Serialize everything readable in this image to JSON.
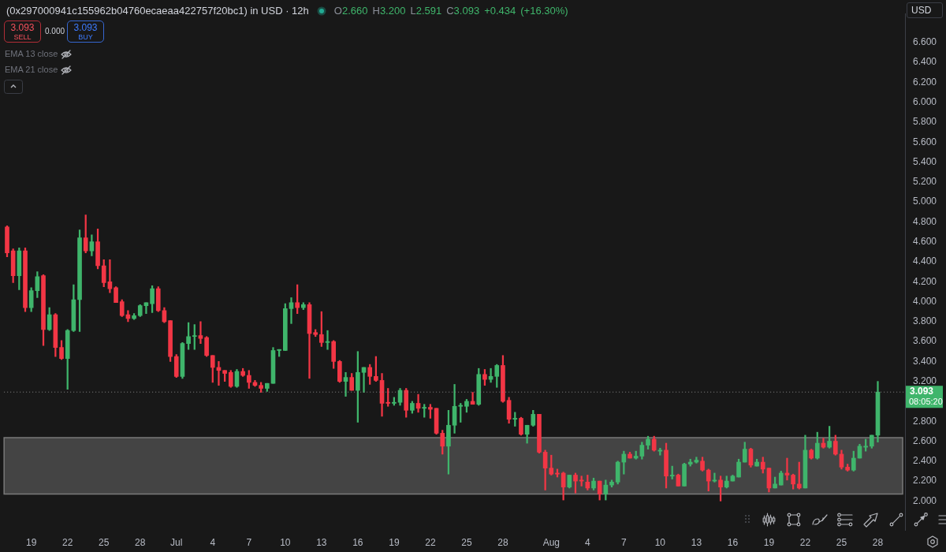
{
  "chart_data": {
    "type": "candlestick",
    "title": "(0x297000941c155962b04760ecaeaa422757f20bc1) in USD · 12h",
    "ylabel": "USD",
    "categories": [
      null,
      null,
      null,
      null,
      "19",
      null,
      null,
      null,
      null,
      null,
      "22",
      null,
      null,
      null,
      null,
      null,
      "25",
      null,
      null,
      null,
      null,
      null,
      "28",
      null,
      null,
      null,
      null,
      null,
      "Jul",
      null,
      null,
      null,
      null,
      null,
      "4",
      null,
      null,
      null,
      null,
      null,
      "7",
      null,
      null,
      null,
      null,
      null,
      "10",
      null,
      null,
      null,
      null,
      null,
      "13",
      null,
      null,
      null,
      null,
      null,
      "16",
      null,
      null,
      null,
      null,
      null,
      "19",
      null,
      null,
      null,
      null,
      null,
      "22",
      null,
      null,
      null,
      null,
      null,
      "25",
      null,
      null,
      null,
      null,
      null,
      "28",
      null,
      null,
      null,
      null,
      null,
      null,
      null,
      "Aug",
      null,
      null,
      null,
      null,
      null,
      "4",
      null,
      null,
      null,
      null,
      null,
      "7",
      null,
      null,
      null,
      null,
      null,
      "10",
      null,
      null,
      null,
      null,
      null,
      "13",
      null,
      null,
      null,
      null,
      null,
      "16",
      null,
      null,
      null,
      null,
      null,
      "19",
      null,
      null,
      null,
      null,
      null,
      "22",
      null,
      null,
      null,
      null,
      null,
      "25",
      null,
      null,
      null,
      null,
      null,
      "28",
      null,
      null,
      null,
      null
    ],
    "ohlc": [
      [
        4.75,
        4.76,
        4.45,
        4.49
      ],
      [
        4.51,
        4.53,
        4.19,
        4.26
      ],
      [
        4.26,
        4.54,
        4.12,
        4.51
      ],
      [
        4.51,
        4.54,
        3.9,
        3.94
      ],
      [
        3.94,
        4.14,
        3.9,
        4.11
      ],
      [
        4.11,
        4.3,
        4.04,
        4.25
      ],
      [
        4.26,
        4.27,
        3.56,
        3.72
      ],
      [
        3.72,
        3.94,
        3.71,
        3.87
      ],
      [
        3.87,
        3.88,
        3.45,
        3.54
      ],
      [
        3.54,
        3.61,
        3.42,
        3.43
      ],
      [
        3.43,
        3.72,
        3.12,
        3.71
      ],
      [
        3.71,
        4.17,
        3.7,
        4.02
      ],
      [
        4.02,
        4.72,
        3.7,
        4.64
      ],
      [
        4.64,
        4.87,
        4.49,
        4.51
      ],
      [
        4.51,
        4.67,
        4.46,
        4.6
      ],
      [
        4.6,
        4.73,
        4.33,
        4.36
      ],
      [
        4.36,
        4.42,
        4.15,
        4.19
      ],
      [
        4.2,
        4.42,
        4.09,
        4.13
      ],
      [
        4.14,
        4.15,
        3.99,
        3.99
      ],
      [
        4.0,
        4.02,
        3.85,
        3.86
      ],
      [
        3.87,
        3.91,
        3.8,
        3.83
      ],
      [
        3.83,
        3.88,
        3.82,
        3.86
      ],
      [
        3.86,
        3.97,
        3.85,
        3.96
      ],
      [
        3.96,
        3.99,
        3.88,
        3.99
      ],
      [
        3.98,
        4.16,
        3.89,
        4.13
      ],
      [
        4.13,
        4.15,
        3.9,
        3.91
      ],
      [
        3.91,
        3.94,
        3.79,
        3.8
      ],
      [
        3.81,
        3.81,
        3.4,
        3.45
      ],
      [
        3.45,
        3.47,
        3.24,
        3.25
      ],
      [
        3.25,
        3.59,
        3.23,
        3.58
      ],
      [
        3.58,
        3.79,
        3.52,
        3.65
      ],
      [
        3.65,
        3.77,
        3.52,
        3.66
      ],
      [
        3.66,
        3.8,
        3.58,
        3.63
      ],
      [
        3.64,
        3.65,
        3.45,
        3.46
      ],
      [
        3.46,
        3.46,
        3.19,
        3.34
      ],
      [
        3.34,
        3.4,
        3.16,
        3.31
      ],
      [
        3.31,
        3.31,
        3.2,
        3.28
      ],
      [
        3.29,
        3.31,
        3.14,
        3.15
      ],
      [
        3.15,
        3.32,
        3.14,
        3.3
      ],
      [
        3.3,
        3.33,
        3.25,
        3.26
      ],
      [
        3.26,
        3.31,
        3.13,
        3.19
      ],
      [
        3.19,
        3.21,
        3.15,
        3.16
      ],
      [
        3.16,
        3.19,
        3.09,
        3.13
      ],
      [
        3.13,
        3.18,
        3.1,
        3.18
      ],
      [
        3.18,
        3.54,
        3.18,
        3.51
      ],
      [
        3.51,
        3.52,
        3.45,
        3.52
      ],
      [
        3.51,
        3.98,
        3.51,
        3.93
      ],
      [
        3.93,
        4.04,
        3.78,
        3.99
      ],
      [
        3.99,
        4.17,
        3.88,
        3.94
      ],
      [
        3.94,
        3.99,
        3.92,
        3.97
      ],
      [
        3.97,
        3.99,
        3.23,
        3.68
      ],
      [
        3.69,
        3.72,
        3.65,
        3.67
      ],
      [
        3.67,
        3.9,
        3.55,
        3.59
      ],
      [
        3.59,
        3.71,
        3.52,
        3.6
      ],
      [
        3.6,
        3.61,
        3.33,
        3.4
      ],
      [
        3.4,
        3.41,
        3.19,
        3.2
      ],
      [
        3.2,
        3.29,
        3.05,
        3.24
      ],
      [
        3.24,
        3.28,
        3.11,
        3.11
      ],
      [
        3.11,
        3.5,
        2.79,
        3.29
      ],
      [
        3.29,
        3.34,
        3.09,
        3.34
      ],
      [
        3.34,
        3.37,
        3.17,
        3.25
      ],
      [
        3.25,
        3.45,
        3.2,
        3.21
      ],
      [
        3.21,
        3.28,
        2.85,
        2.98
      ],
      [
        2.99,
        3.13,
        2.95,
        2.98
      ],
      [
        2.98,
        3.04,
        2.96,
        2.99
      ],
      [
        2.99,
        3.13,
        2.96,
        3.11
      ],
      [
        3.11,
        3.13,
        2.84,
        2.91
      ],
      [
        2.91,
        3.0,
        2.88,
        2.98
      ],
      [
        2.98,
        3.07,
        2.89,
        2.93
      ],
      [
        2.93,
        2.97,
        2.84,
        2.94
      ],
      [
        2.94,
        2.97,
        2.83,
        2.92
      ],
      [
        2.93,
        2.93,
        2.67,
        2.68
      ],
      [
        2.68,
        2.71,
        2.47,
        2.55
      ],
      [
        2.55,
        2.91,
        2.27,
        2.76
      ],
      [
        2.76,
        3.17,
        2.68,
        2.95
      ],
      [
        2.95,
        2.98,
        2.79,
        2.96
      ],
      [
        2.95,
        3.02,
        2.89,
        3.0
      ],
      [
        3.0,
        3.09,
        2.97,
        2.97
      ],
      [
        2.97,
        3.33,
        2.96,
        3.27
      ],
      [
        3.27,
        3.32,
        3.16,
        3.22
      ],
      [
        3.22,
        3.33,
        3.19,
        3.25
      ],
      [
        3.25,
        3.37,
        3.14,
        3.36
      ],
      [
        3.36,
        3.46,
        2.99,
        3.0
      ],
      [
        3.01,
        3.04,
        2.78,
        2.82
      ],
      [
        2.82,
        2.89,
        2.75,
        2.83
      ],
      [
        2.83,
        2.84,
        2.66,
        2.67
      ],
      [
        2.67,
        2.76,
        2.58,
        2.76
      ],
      [
        2.76,
        2.91,
        2.75,
        2.87
      ],
      [
        2.87,
        2.87,
        2.48,
        2.49
      ],
      [
        2.49,
        2.51,
        2.11,
        2.33
      ],
      [
        2.33,
        2.46,
        2.26,
        2.27
      ],
      [
        2.28,
        2.32,
        2.24,
        2.27
      ],
      [
        2.28,
        2.29,
        2.01,
        2.14
      ],
      [
        2.14,
        2.26,
        2.13,
        2.26
      ],
      [
        2.26,
        2.28,
        2.08,
        2.2
      ],
      [
        2.21,
        2.25,
        2.15,
        2.2
      ],
      [
        2.19,
        2.26,
        2.11,
        2.13
      ],
      [
        2.13,
        2.23,
        2.11,
        2.2
      ],
      [
        2.2,
        2.2,
        2.01,
        2.07
      ],
      [
        2.07,
        2.21,
        2.01,
        2.16
      ],
      [
        2.16,
        2.21,
        2.14,
        2.19
      ],
      [
        2.19,
        2.4,
        2.17,
        2.39
      ],
      [
        2.39,
        2.5,
        2.27,
        2.47
      ],
      [
        2.47,
        2.49,
        2.43,
        2.43
      ],
      [
        2.43,
        2.5,
        2.42,
        2.45
      ],
      [
        2.45,
        2.59,
        2.42,
        2.56
      ],
      [
        2.56,
        2.65,
        2.52,
        2.62
      ],
      [
        2.62,
        2.65,
        2.5,
        2.51
      ],
      [
        2.5,
        2.53,
        2.46,
        2.51
      ],
      [
        2.51,
        2.58,
        2.13,
        2.25
      ],
      [
        2.25,
        2.35,
        2.22,
        2.26
      ],
      [
        2.26,
        2.27,
        2.15,
        2.15
      ],
      [
        2.15,
        2.38,
        2.15,
        2.37
      ],
      [
        2.37,
        2.42,
        2.35,
        2.39
      ],
      [
        2.39,
        2.44,
        2.38,
        2.41
      ],
      [
        2.4,
        2.44,
        2.3,
        2.31
      ],
      [
        2.31,
        2.32,
        2.1,
        2.2
      ],
      [
        2.2,
        2.28,
        2.19,
        2.21
      ],
      [
        2.21,
        2.25,
        2.0,
        2.14
      ],
      [
        2.14,
        2.25,
        2.13,
        2.2
      ],
      [
        2.2,
        2.26,
        2.2,
        2.25
      ],
      [
        2.24,
        2.42,
        2.24,
        2.39
      ],
      [
        2.39,
        2.59,
        2.39,
        2.52
      ],
      [
        2.52,
        2.53,
        2.34,
        2.36
      ],
      [
        2.35,
        2.42,
        2.35,
        2.39
      ],
      [
        2.39,
        2.44,
        2.28,
        2.32
      ],
      [
        2.33,
        2.33,
        2.09,
        2.13
      ],
      [
        2.13,
        2.24,
        2.13,
        2.17
      ],
      [
        2.16,
        2.3,
        2.16,
        2.28
      ],
      [
        2.28,
        2.43,
        2.21,
        2.26
      ],
      [
        2.26,
        2.27,
        2.12,
        2.17
      ],
      [
        2.17,
        2.39,
        2.12,
        2.13
      ],
      [
        2.13,
        2.66,
        2.13,
        2.51
      ],
      [
        2.51,
        2.52,
        2.42,
        2.43
      ],
      [
        2.43,
        2.69,
        2.42,
        2.58
      ],
      [
        2.58,
        2.63,
        2.53,
        2.54
      ],
      [
        2.54,
        2.75,
        2.53,
        2.6
      ],
      [
        2.6,
        2.66,
        2.46,
        2.47
      ],
      [
        2.47,
        2.51,
        2.32,
        2.34
      ],
      [
        2.34,
        2.37,
        2.3,
        2.31
      ],
      [
        2.31,
        2.5,
        2.3,
        2.43
      ],
      [
        2.43,
        2.57,
        2.43,
        2.55
      ],
      [
        2.54,
        2.62,
        2.5,
        2.55
      ],
      [
        2.55,
        2.66,
        2.53,
        2.66
      ],
      [
        2.66,
        3.2,
        2.591,
        3.093
      ],
      null,
      null,
      null,
      null
    ],
    "ylim": [
      1.71,
      6.89
    ],
    "yticks": [
      {
        "value": 2,
        "label": "2.000"
      },
      {
        "value": 2.2,
        "label": "2.200"
      },
      {
        "value": 2.4,
        "label": "2.400"
      },
      {
        "value": 2.6,
        "label": "2.600"
      },
      {
        "value": 2.8,
        "label": "2.800"
      },
      {
        "value": 3.2,
        "label": "3.200"
      },
      {
        "value": 3.4,
        "label": "3.400"
      },
      {
        "value": 3.6,
        "label": "3.600"
      },
      {
        "value": 3.8,
        "label": "3.800"
      },
      {
        "value": 4,
        "label": "4.000"
      },
      {
        "value": 4.2,
        "label": "4.200"
      },
      {
        "value": 4.4,
        "label": "4.400"
      },
      {
        "value": 4.6,
        "label": "4.600"
      },
      {
        "value": 4.8,
        "label": "4.800"
      },
      {
        "value": 5,
        "label": "5.000"
      },
      {
        "value": 5.2,
        "label": "5.200"
      },
      {
        "value": 5.4,
        "label": "5.400"
      },
      {
        "value": 5.6,
        "label": "5.600"
      },
      {
        "value": 5.8,
        "label": "5.800"
      },
      {
        "value": 6,
        "label": "6.000"
      },
      {
        "value": 6.2,
        "label": "6.200"
      },
      {
        "value": 6.4,
        "label": "6.400"
      },
      {
        "value": 6.6,
        "label": "6.600"
      }
    ],
    "ref_lines": [
      {
        "axis": "y",
        "value": 3.093,
        "label": "3.093",
        "color": "#8c8c8c",
        "line_style": "dotted"
      }
    ],
    "bands": [
      {
        "axis": "y",
        "from": 2.07,
        "to": 2.635,
        "color": "#7a7a7a"
      }
    ],
    "annotations": [
      "O2.660 H3.200 L2.591 C3.093 +0.434 (+16.30%)",
      "3.093",
      "SELL",
      "0.000",
      "3.093",
      "BUY",
      "EMA 13 close",
      "EMA 21 close",
      "08:05:20"
    ]
  }
}
